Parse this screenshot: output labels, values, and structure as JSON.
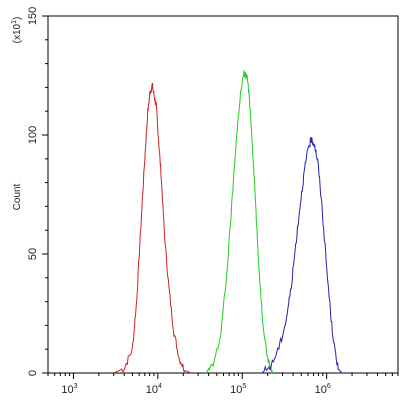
{
  "chart_data": {
    "type": "line",
    "title": "",
    "xlabel": "",
    "ylabel": "Count",
    "y_multiplier_label": "(x10",
    "y_multiplier_exponent": "1",
    "y_multiplier_close": ")",
    "x_scale": "log",
    "xlim": [
      500,
      7000000
    ],
    "ylim": [
      0,
      150
    ],
    "y_ticks": [
      "0",
      "50",
      "100",
      "150"
    ],
    "y_tick_values": [
      0,
      50,
      100,
      150
    ],
    "x_ticks": [
      {
        "value": 1000,
        "base": "10",
        "exp": "3"
      },
      {
        "value": 10000,
        "base": "10",
        "exp": "4"
      },
      {
        "value": 100000,
        "base": "10",
        "exp": "5"
      },
      {
        "value": 1000000,
        "base": "10",
        "exp": "6"
      }
    ],
    "grid": false,
    "legend": "none",
    "series": [
      {
        "color": "#cc2222",
        "x": [
          3000,
          4000,
          5000,
          5600,
          6300,
          7000,
          7600,
          8100,
          8600,
          9100,
          9600,
          10200,
          11000,
          12000,
          13500,
          15500,
          18000,
          21000,
          25000
        ],
        "y": [
          0,
          2,
          10,
          30,
          62,
          90,
          110,
          118,
          121,
          116,
          112,
          98,
          82,
          58,
          36,
          17,
          6,
          1,
          0
        ]
      },
      {
        "color": "#22cc22",
        "x": [
          37000,
          45000,
          55000,
          65000,
          75000,
          85000,
          95000,
          105000,
          115000,
          125000,
          140000,
          155000,
          175000,
          200000,
          230000
        ],
        "y": [
          0,
          3,
          15,
          40,
          70,
          98,
          117,
          126,
          124,
          110,
          80,
          48,
          22,
          6,
          0
        ]
      },
      {
        "color": "#2222aa",
        "x": [
          170000,
          220000,
          280000,
          330000,
          380000,
          430000,
          490000,
          550000,
          610000,
          660000,
          720000,
          790000,
          880000,
          1000000,
          1150000,
          1300000,
          1500000
        ],
        "y": [
          0,
          3,
          12,
          22,
          36,
          54,
          72,
          86,
          95,
          98,
          96,
          88,
          70,
          44,
          20,
          5,
          0
        ]
      }
    ]
  }
}
